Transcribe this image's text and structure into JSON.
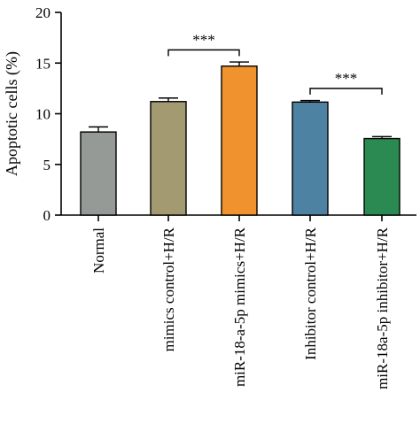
{
  "chart_data": {
    "type": "bar",
    "title": "",
    "xlabel": "",
    "ylabel": "Apoptotic cells (%)",
    "ylim": [
      0,
      20
    ],
    "yticks": [
      0,
      5,
      10,
      15,
      20
    ],
    "categories": [
      "Normal",
      "mimics control+H/R",
      "miR-18-a-5p mimics+H/R",
      "Inhibitor control+H/R",
      "miR-18a-5p inhibitor+H/R"
    ],
    "values": [
      8.2,
      11.2,
      14.7,
      11.15,
      7.55
    ],
    "errors": [
      0.5,
      0.35,
      0.4,
      0.15,
      0.2
    ],
    "colors": [
      "#969a97",
      "#a39a72",
      "#f0932f",
      "#4e82a2",
      "#2a8a52"
    ],
    "grid": false,
    "significance": [
      {
        "from": 1,
        "to": 2,
        "y": 16.3,
        "label": "***"
      },
      {
        "from": 3,
        "to": 4,
        "y": 12.5,
        "label": "***"
      }
    ]
  }
}
